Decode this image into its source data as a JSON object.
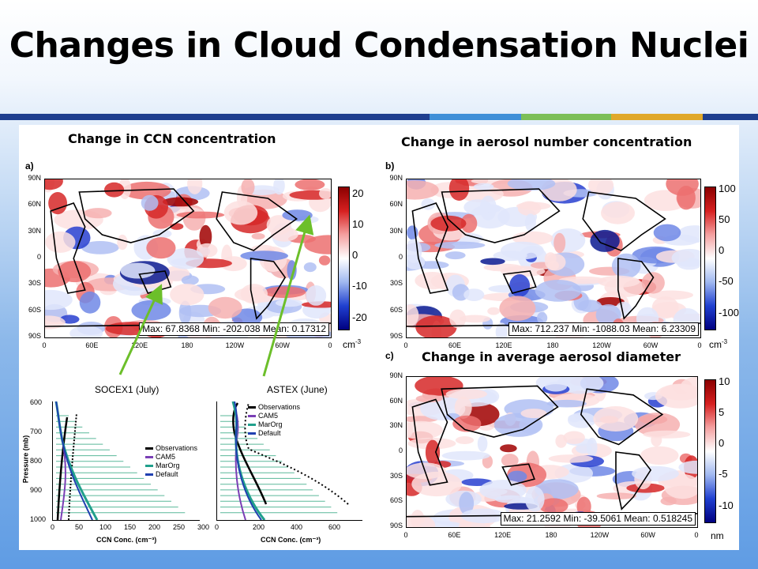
{
  "slide": {
    "title": "Changes in Cloud Condensation Nuclei",
    "accent_colors": [
      "#1f3f8f",
      "#3f8fd8",
      "#7cbf58",
      "#e0a82a",
      "#1f3f8f"
    ]
  },
  "panels": {
    "a": {
      "heading": "Change in CCN concentration",
      "letter": "a)",
      "stats": "Max: 67.8368   Min: -202.038   Mean: 0.17312",
      "colorbar": [
        "20",
        "10",
        "0",
        "-10",
        "-20"
      ],
      "unit": "cm",
      "unit_exp": "-3"
    },
    "b": {
      "heading": "Change in aerosol number concentration",
      "letter": "b)",
      "stats": "Max: 712.237   Min: -1088.03   Mean: 6.23309",
      "colorbar": [
        "100",
        "50",
        "0",
        "-50",
        "-100"
      ],
      "unit": "cm",
      "unit_exp": "-3"
    },
    "c": {
      "heading": "Change in average aerosol diameter",
      "letter": "c)",
      "stats": "Max: 21.2592   Min: -39.5061   Mean: 0.518245",
      "colorbar": [
        "10",
        "5",
        "0",
        "-5",
        "-10"
      ],
      "unit": "nm"
    }
  },
  "map_axes": {
    "lat_ticks": [
      "90N",
      "60N",
      "30N",
      "0",
      "30S",
      "60S",
      "90S"
    ],
    "lon_ticks": [
      "0",
      "60E",
      "120E",
      "180",
      "120W",
      "60W",
      "0"
    ]
  },
  "profiles": {
    "left": {
      "title": "SOCEX1 (July)",
      "xticks": [
        "0",
        "50",
        "100",
        "150",
        "200",
        "250",
        "300"
      ],
      "yticks": [
        "600",
        "700",
        "800",
        "900",
        "1000"
      ]
    },
    "right": {
      "title": "ASTEX (June)",
      "xticks": [
        "0",
        "200",
        "400",
        "600"
      ]
    },
    "xlabel": "CCN Conc. (cm⁻³)",
    "ylabel": "Pressure (mb)",
    "legend": [
      "Observations",
      "CAM5",
      "MarOrg",
      "Default"
    ],
    "legend_colors": [
      "#000000",
      "#7a3fb5",
      "#21a08c",
      "#2040b0"
    ]
  }
}
